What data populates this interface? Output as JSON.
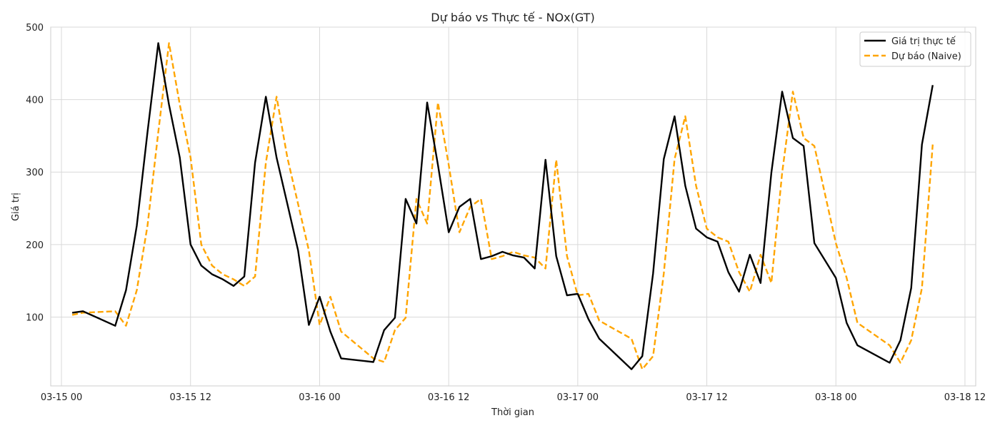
{
  "chart_data": {
    "type": "line",
    "title": "Dự báo vs Thực tế - NOx(GT)",
    "xlabel": "Thời gian",
    "ylabel": "Giá trị",
    "grid": true,
    "legend_position": "top-right",
    "x_ticks": [
      "03-15 00",
      "03-15 12",
      "03-16 00",
      "03-16 12",
      "03-17 00",
      "03-17 12",
      "03-18 00",
      "03-18 12"
    ],
    "x_range": [
      "2005-03-14 23:00",
      "2005-03-18 13:00"
    ],
    "y_ticks": [
      100,
      200,
      300,
      400,
      500
    ],
    "ylim": [
      5,
      500
    ],
    "x": [
      "03-15 01:00",
      "03-15 02:00",
      "03-15 05:00",
      "03-15 06:00",
      "03-15 07:00",
      "03-15 08:00",
      "03-15 09:00",
      "03-15 10:00",
      "03-15 11:00",
      "03-15 12:00",
      "03-15 13:00",
      "03-15 14:00",
      "03-15 15:00",
      "03-15 16:00",
      "03-15 17:00",
      "03-15 18:00",
      "03-15 19:00",
      "03-15 20:00",
      "03-15 21:00",
      "03-15 22:00",
      "03-15 23:00",
      "03-16 00:00",
      "03-16 01:00",
      "03-16 02:00",
      "03-16 05:00",
      "03-16 06:00",
      "03-16 07:00",
      "03-16 08:00",
      "03-16 09:00",
      "03-16 10:00",
      "03-16 11:00",
      "03-16 12:00",
      "03-16 13:00",
      "03-16 14:00",
      "03-16 15:00",
      "03-16 16:00",
      "03-16 17:00",
      "03-16 18:00",
      "03-16 19:00",
      "03-16 20:00",
      "03-16 21:00",
      "03-16 22:00",
      "03-16 23:00",
      "03-17 00:00",
      "03-17 01:00",
      "03-17 02:00",
      "03-17 05:00",
      "03-17 06:00",
      "03-17 07:00",
      "03-17 08:00",
      "03-17 09:00",
      "03-17 10:00",
      "03-17 11:00",
      "03-17 12:00",
      "03-17 13:00",
      "03-17 14:00",
      "03-17 15:00",
      "03-17 16:00",
      "03-17 17:00",
      "03-17 18:00",
      "03-17 19:00",
      "03-17 20:00",
      "03-17 21:00",
      "03-17 22:00",
      "03-18 00:00",
      "03-18 01:00",
      "03-18 02:00",
      "03-18 05:00",
      "03-18 06:00",
      "03-18 07:00",
      "03-18 08:00",
      "03-18 09:00"
    ],
    "series": [
      {
        "name": "Giá trị thực tế",
        "color": "#000000",
        "dash": "solid",
        "values": [
          106,
          108,
          88,
          137,
          226,
          355,
          478,
          393,
          320,
          200,
          171,
          159,
          152,
          143,
          156,
          313,
          404,
          320,
          256,
          192,
          89,
          128,
          80,
          43,
          38,
          82,
          99,
          263,
          229,
          396,
          310,
          217,
          252,
          263,
          180,
          184,
          190,
          185,
          182,
          167,
          317,
          184,
          130,
          132,
          97,
          70,
          28,
          46,
          160,
          318,
          377,
          281,
          222,
          210,
          204,
          162,
          135,
          186,
          147,
          299,
          411,
          347,
          336,
          202,
          154,
          92,
          61,
          37,
          68,
          140,
          338,
          420
        ]
      },
      {
        "name": "Dự báo (Naive)",
        "color": "#FFA500",
        "dash": "dashed",
        "values": [
          103,
          106,
          108,
          88,
          137,
          226,
          355,
          478,
          393,
          320,
          200,
          171,
          159,
          152,
          143,
          156,
          313,
          404,
          320,
          256,
          192,
          89,
          128,
          80,
          43,
          38,
          82,
          99,
          263,
          229,
          396,
          310,
          217,
          252,
          263,
          180,
          184,
          190,
          185,
          182,
          167,
          317,
          184,
          130,
          132,
          95,
          70,
          28,
          46,
          160,
          318,
          377,
          281,
          222,
          210,
          204,
          162,
          135,
          186,
          147,
          299,
          411,
          347,
          336,
          202,
          154,
          92,
          61,
          37,
          68,
          140,
          338
        ]
      }
    ]
  }
}
